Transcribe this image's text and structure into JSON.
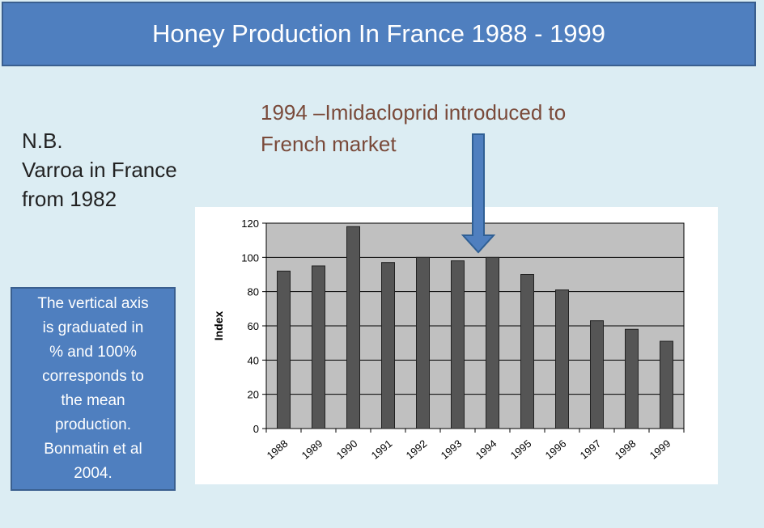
{
  "header": {
    "title": "Honey Production In France 1988 - 1999"
  },
  "note": {
    "lines": [
      "N.B.",
      "Varroa in France",
      "from 1982"
    ]
  },
  "annotation": {
    "lines": [
      "1994 –Imidacloprid introduced to",
      "French market"
    ],
    "arrow_color": "#4f7fbf"
  },
  "info_box": {
    "lines": [
      "The vertical axis",
      "is graduated in",
      "% and 100%",
      "corresponds to",
      "the mean",
      "production.",
      "Bonmatin et al",
      "2004."
    ]
  },
  "colors": {
    "accent": "#4f7fbf",
    "bar": "#555555",
    "plot_background": "#c0c0c0"
  },
  "chart_data": {
    "type": "bar",
    "title": "",
    "xlabel": "",
    "ylabel": "Index",
    "categories": [
      "1988",
      "1989",
      "1990",
      "1991",
      "1992",
      "1993",
      "1994",
      "1995",
      "1996",
      "1997",
      "1998",
      "1999"
    ],
    "values": [
      92,
      95,
      118,
      97,
      100,
      98,
      100,
      90,
      81,
      63,
      58,
      51
    ],
    "ylim": [
      0,
      120
    ],
    "yticks": [
      0,
      20,
      40,
      60,
      80,
      100,
      120
    ],
    "grid": true
  }
}
